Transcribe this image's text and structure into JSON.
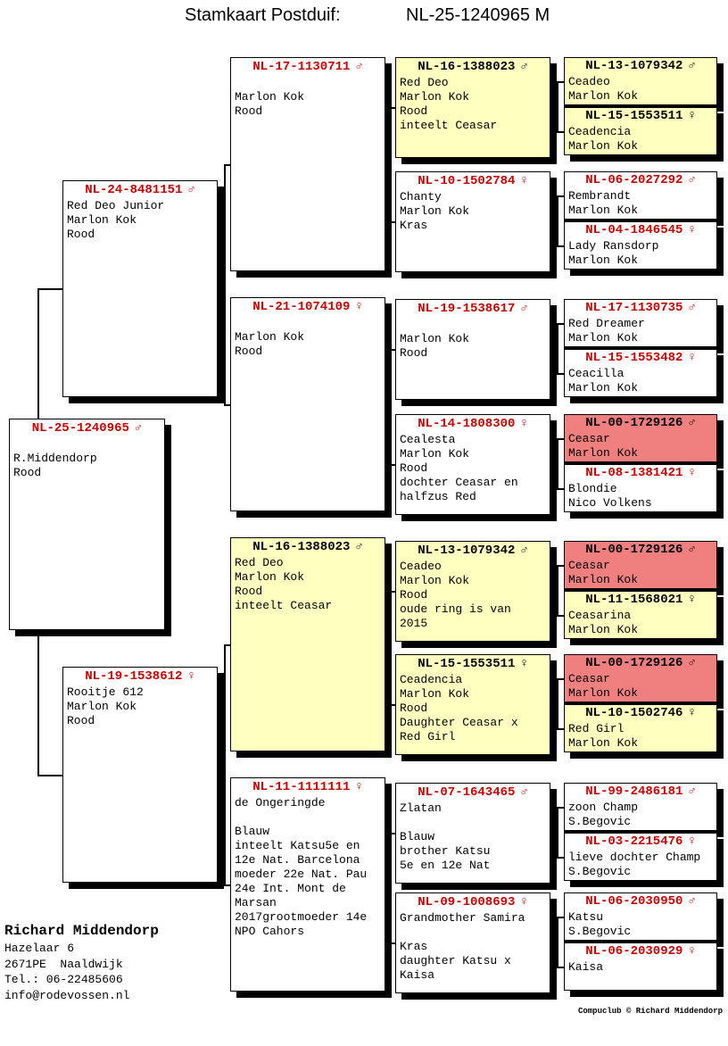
{
  "title": {
    "left": "Stamkaart Postduif:",
    "right": "NL-25-1240965 M"
  },
  "colors": {
    "accent_red": "#CC0000",
    "box_yellow": "#FFFFC0",
    "box_pink": "#F08080",
    "box_white": "#FFFFFF"
  },
  "boxes": [
    {
      "ring": "NL-25-1240965",
      "sex": "male",
      "color": "white",
      "lines": [
        "",
        "R.Middendorp",
        "Rood"
      ]
    },
    {
      "ring": "NL-24-8481151",
      "sex": "male",
      "color": "white",
      "lines": [
        "Red Deo Junior",
        "Marlon Kok",
        "Rood"
      ]
    },
    {
      "ring": "NL-19-1538612",
      "sex": "female",
      "color": "white",
      "lines": [
        "Rooitje 612",
        "Marlon Kok",
        "Rood"
      ]
    },
    {
      "ring": "NL-17-1130711",
      "sex": "male",
      "color": "white",
      "lines": [
        "",
        "Marlon Kok",
        "Rood"
      ]
    },
    {
      "ring": "NL-21-1074109",
      "sex": "female",
      "color": "white",
      "lines": [
        "",
        "Marlon Kok",
        "Rood"
      ]
    },
    {
      "ring": "NL-16-1388023",
      "sex": "male",
      "color": "yellow",
      "lines": [
        "Red Deo",
        "Marlon Kok",
        "Rood",
        "inteelt Ceasar"
      ]
    },
    {
      "ring": "NL-11-1111111",
      "sex": "female",
      "color": "white",
      "lines": [
        "de Ongeringde",
        "",
        "Blauw",
        "inteelt Katsu5e en",
        "12e Nat. Barcelona",
        "moeder 22e Nat. Pau",
        "24e Int. Mont de",
        "Marsan",
        "2017grootmoeder 14e",
        "NPO Cahors"
      ]
    },
    {
      "ring": "NL-16-1388023",
      "sex": "male",
      "color": "yellow",
      "lines": [
        "Red Deo",
        "Marlon Kok",
        "Rood",
        "inteelt Ceasar"
      ]
    },
    {
      "ring": "NL-10-1502784",
      "sex": "female",
      "color": "white",
      "lines": [
        "Chanty",
        "Marlon Kok",
        "Kras"
      ]
    },
    {
      "ring": "NL-19-1538617",
      "sex": "male",
      "color": "white",
      "lines": [
        "",
        "Marlon Kok",
        "Rood"
      ]
    },
    {
      "ring": "NL-14-1808300",
      "sex": "female",
      "color": "white",
      "lines": [
        "Cealesta",
        "Marlon Kok",
        "Rood",
        "dochter Ceasar en",
        "halfzus Red"
      ]
    },
    {
      "ring": "NL-13-1079342",
      "sex": "male",
      "color": "yellow",
      "lines": [
        "Ceadeo",
        "Marlon Kok",
        "Rood",
        "oude ring is van",
        "2015"
      ]
    },
    {
      "ring": "NL-15-1553511",
      "sex": "female",
      "color": "yellow",
      "lines": [
        "Ceadencia",
        "Marlon Kok",
        "Rood",
        "Daughter Ceasar x",
        "Red Girl"
      ]
    },
    {
      "ring": "NL-07-1643465",
      "sex": "male",
      "color": "white",
      "lines": [
        "Zlatan",
        "",
        "Blauw",
        "brother Katsu",
        "5e en 12e Nat"
      ]
    },
    {
      "ring": "NL-09-1008693",
      "sex": "female",
      "color": "white",
      "lines": [
        "Grandmother Samira",
        "",
        "Kras",
        "daughter Katsu x",
        "Kaisa"
      ]
    },
    {
      "ring": "NL-13-1079342",
      "sex": "male",
      "color": "yellow",
      "lines": [
        "Ceadeo",
        "Marlon Kok"
      ]
    },
    {
      "ring": "NL-15-1553511",
      "sex": "female",
      "color": "yellow",
      "lines": [
        "Ceadencia",
        "Marlon Kok"
      ]
    },
    {
      "ring": "NL-06-2027292",
      "sex": "male",
      "color": "white",
      "lines": [
        "Rembrandt",
        "Marlon Kok"
      ]
    },
    {
      "ring": "NL-04-1846545",
      "sex": "female",
      "color": "white",
      "lines": [
        "Lady Ransdorp",
        "Marlon Kok"
      ]
    },
    {
      "ring": "NL-17-1130735",
      "sex": "male",
      "color": "white",
      "lines": [
        "Red Dreamer",
        "Marlon Kok"
      ]
    },
    {
      "ring": "NL-15-1553482",
      "sex": "female",
      "color": "white",
      "lines": [
        "Ceacilla",
        "Marlon Kok"
      ]
    },
    {
      "ring": "NL-00-1729126",
      "sex": "male",
      "color": "pink",
      "lines": [
        "Ceasar",
        "Marlon Kok"
      ]
    },
    {
      "ring": "NL-08-1381421",
      "sex": "female",
      "color": "white",
      "lines": [
        "Blondie",
        "Nico Volkens"
      ]
    },
    {
      "ring": "NL-00-1729126",
      "sex": "male",
      "color": "pink",
      "lines": [
        "Ceasar",
        "Marlon Kok"
      ]
    },
    {
      "ring": "NL-11-1568021",
      "sex": "female",
      "color": "yellow",
      "lines": [
        "Ceasarina",
        "Marlon Kok"
      ]
    },
    {
      "ring": "NL-00-1729126",
      "sex": "male",
      "color": "pink",
      "lines": [
        "Ceasar",
        "Marlon Kok"
      ]
    },
    {
      "ring": "NL-10-1502746",
      "sex": "female",
      "color": "yellow",
      "lines": [
        "Red Girl",
        "Marlon Kok"
      ]
    },
    {
      "ring": "NL-99-2486181",
      "sex": "male",
      "color": "white",
      "lines": [
        "zoon Champ",
        "S.Begovic"
      ]
    },
    {
      "ring": "NL-03-2215476",
      "sex": "female",
      "color": "white",
      "lines": [
        "lieve dochter Champ",
        "S.Begovic"
      ]
    },
    {
      "ring": "NL-06-2030950",
      "sex": "male",
      "color": "white",
      "lines": [
        "Katsu",
        "S.Begovic"
      ]
    },
    {
      "ring": "NL-06-2030929",
      "sex": "female",
      "color": "white",
      "lines": [
        "Kaisa"
      ]
    }
  ],
  "owner": {
    "name": "Richard Middendorp",
    "address1": "Hazelaar 6",
    "address2": "2671PE  Naaldwijk",
    "phone": "Tel.: 06-22485606",
    "email": "info@rodevossen.nl"
  },
  "credit": "Compuclub © Richard Middendorp"
}
